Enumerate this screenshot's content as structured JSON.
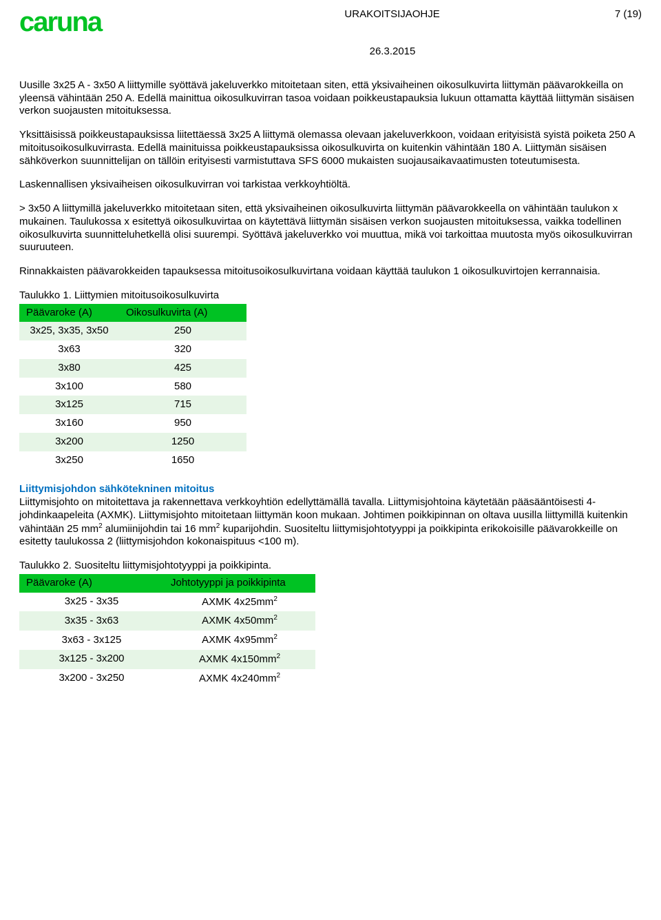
{
  "header": {
    "logo_text": "caruna",
    "doc_type": "URAKOITSIJAOHJE",
    "page_num": "7 (19)",
    "date": "26.3.2015"
  },
  "paragraphs": {
    "p1": "Uusille 3x25 A - 3x50 A liittymille syöttävä jakeluverkko mitoitetaan siten, että yksivaiheinen oikosulkuvirta liittymän päävarokkeilla on yleensä vähintään 250 A. Edellä mainittua oikosulkuvirran tasoa voidaan poikkeustapauksia lukuun ottamatta käyttää liittymän sisäisen verkon suojausten mitoituksessa.",
    "p2": "Yksittäisissä poikkeustapauksissa liitettäessä 3x25 A liittymä olemassa olevaan jakeluverkkoon, voidaan erityisistä syistä poiketa 250 A mitoitusoikosulkuvirrasta. Edellä mainituissa poikkeustapauksissa oikosulkuvirta on kuitenkin vähintään 180 A. Liittymän sisäisen sähköverkon suunnittelijan on tällöin erityisesti varmistuttava SFS 6000 mukaisten suojausaikavaatimusten toteutumisesta.",
    "p3": "Laskennallisen yksivaiheisen oikosulkuvirran voi tarkistaa verkkoyhtiöltä.",
    "p4": "> 3x50 A liittymillä jakeluverkko mitoitetaan siten, että yksivaiheinen oikosulkuvirta liittymän päävarokkeella on vähintään taulukon x mukainen. Taulukossa x esitettyä oikosulkuvirtaa on käytettävä liittymän sisäisen verkon suojausten mitoituksessa, vaikka todellinen oikosulkuvirta suunnitteluhetkellä olisi suurempi. Syöttävä jakeluverkko voi muuttua, mikä voi tarkoittaa muutosta myös oikosulkuvirran suuruuteen.",
    "p5": "Rinnakkaisten päävarokkeiden tapauksessa mitoitusoikosulkuvirtana voidaan käyttää taulukon 1 oikosulkuvirtojen kerrannaisia.",
    "p6a": "Liittymisjohdon sähkötekninen mitoitus",
    "p6b_1": "Liittymisjohto on mitoitettava ja rakennettava verkkoyhtiön edellyttämällä tavalla. Liittymisjohtoina käytetään pääsääntöisesti 4-johdinkaapeleita (AXMK). Liittymisjohto mitoitetaan liittymän koon mukaan. Johtimen poikkipinnan on oltava uusilla liittymillä kuitenkin vähintään 25 mm",
    "p6b_2": " alumiinijohdin tai 16 mm",
    "p6b_3": " kuparijohdin. Suositeltu liittymisjohtotyyppi ja poikkipinta erikokoisille päävarokkeille on esitetty taulukossa 2 (liittymisjohdon kokonaispituus <100 m)."
  },
  "table1": {
    "caption": "Taulukko 1. Liittymien mitoitusoikosulkuvirta",
    "headers": [
      "Päävaroke (A)",
      "Oikosulkuvirta (A)"
    ],
    "rows": [
      {
        "c1": "3x25, 3x35, 3x50",
        "c2": "250",
        "shade": "light"
      },
      {
        "c1": "3x63",
        "c2": "320",
        "shade": "white"
      },
      {
        "c1": "3x80",
        "c2": "425",
        "shade": "light"
      },
      {
        "c1": "3x100",
        "c2": "580",
        "shade": "white"
      },
      {
        "c1": "3x125",
        "c2": "715",
        "shade": "light"
      },
      {
        "c1": "3x160",
        "c2": "950",
        "shade": "white"
      },
      {
        "c1": "3x200",
        "c2": "1250",
        "shade": "light"
      },
      {
        "c1": "3x250",
        "c2": "1650",
        "shade": "white"
      }
    ]
  },
  "table2": {
    "caption": "Taulukko 2. Suositeltu liittymisjohtotyyppi ja poikkipinta.",
    "headers": [
      "Päävaroke (A)",
      "Johtotyyppi ja poikkipinta"
    ],
    "rows": [
      {
        "c1": "3x25 - 3x35",
        "c2": "AXMK 4x25mm",
        "shade": "white"
      },
      {
        "c1": "3x35 - 3x63",
        "c2": "AXMK 4x50mm",
        "shade": "light"
      },
      {
        "c1": "3x63 - 3x125",
        "c2": "AXMK 4x95mm",
        "shade": "white"
      },
      {
        "c1": "3x125 - 3x200",
        "c2": "AXMK 4x150mm",
        "shade": "light"
      },
      {
        "c1": "3x200 - 3x250",
        "c2": "AXMK 4x240mm",
        "shade": "white"
      }
    ]
  },
  "sup2": "2"
}
